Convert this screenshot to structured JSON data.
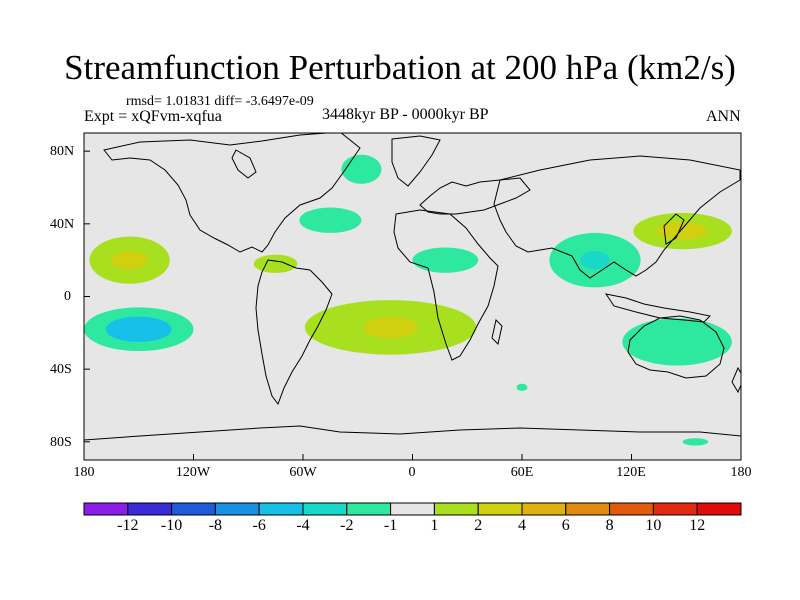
{
  "title": "Streamfunction Perturbation at 200 hPa (km2/s)",
  "stats_line": "rmsd= 1.01831 diff= -3.6497e-09",
  "expt_line": "Expt = xQFvm-xqfua",
  "period_line": "3448kyr BP - 0000kyr BP",
  "season": "ANN",
  "lat_labels": [
    "80N",
    "40N",
    "0",
    "40S",
    "80S"
  ],
  "lon_labels": [
    "180",
    "120W",
    "60W",
    "0",
    "60E",
    "120E",
    "180"
  ],
  "colorbar": {
    "labels": [
      "-12",
      "-10",
      "-8",
      "-6",
      "-4",
      "-2",
      "-1",
      "1",
      "2",
      "4",
      "6",
      "8",
      "10",
      "12"
    ],
    "colors": [
      "#8a1ee8",
      "#3a2ad8",
      "#1f5ad8",
      "#1a90e0",
      "#16c0e8",
      "#1ad8c8",
      "#2ee8a0",
      "#e6e6e6",
      "#a8e020",
      "#d0d010",
      "#e0b010",
      "#e08a10",
      "#e05a10",
      "#e02a10",
      "#e00a0a"
    ]
  },
  "map_data": {
    "background_color": "#e6e6e6",
    "lat_range": [
      -90,
      90
    ],
    "lon_range": [
      -180,
      180
    ],
    "anomaly_regions": [
      {
        "name": "north-pacific-positive",
        "lon": -155,
        "lat": 20,
        "rx": 22,
        "ry": 13,
        "color": "#a8e020",
        "core": {
          "rx": 10,
          "ry": 5,
          "color": "#d0d010"
        }
      },
      {
        "name": "south-pacific-negative",
        "lon": -150,
        "lat": -18,
        "rx": 30,
        "ry": 12,
        "color": "#2ee8a0",
        "core": {
          "rx": 18,
          "ry": 7,
          "color": "#16c0e8"
        }
      },
      {
        "name": "caribbean-positive",
        "lon": -75,
        "lat": 18,
        "rx": 12,
        "ry": 5,
        "color": "#a8e020"
      },
      {
        "name": "north-atlantic-negative",
        "lon": -45,
        "lat": 42,
        "rx": 17,
        "ry": 7,
        "color": "#2ee8a0"
      },
      {
        "name": "greenland-negative",
        "lon": -28,
        "lat": 70,
        "rx": 11,
        "ry": 8,
        "color": "#2ee8a0"
      },
      {
        "name": "sahara-negative",
        "lon": 18,
        "lat": 20,
        "rx": 18,
        "ry": 7,
        "color": "#2ee8a0"
      },
      {
        "name": "south-atlantic-positive",
        "lon": -12,
        "lat": -17,
        "rx": 47,
        "ry": 15,
        "color": "#a8e020",
        "core": {
          "rx": 15,
          "ry": 6,
          "color": "#d0d010"
        }
      },
      {
        "name": "asia-negative",
        "lon": 100,
        "lat": 20,
        "rx": 25,
        "ry": 15,
        "color": "#2ee8a0",
        "core": {
          "rx": 8,
          "ry": 5,
          "color": "#1ad8c8"
        }
      },
      {
        "name": "japan-positive",
        "lon": 148,
        "lat": 36,
        "rx": 27,
        "ry": 10,
        "color": "#a8e020",
        "core": {
          "rx": 14,
          "ry": 5,
          "color": "#d0d010"
        }
      },
      {
        "name": "australia-negative",
        "lon": 145,
        "lat": -25,
        "rx": 30,
        "ry": 13,
        "color": "#2ee8a0"
      },
      {
        "name": "south-indian-negative",
        "lon": 60,
        "lat": -50,
        "rx": 3,
        "ry": 2,
        "color": "#2ee8a0"
      },
      {
        "name": "southern-pacific-negative",
        "lon": 155,
        "lat": -80,
        "rx": 7,
        "ry": 2,
        "color": "#2ee8a0"
      }
    ]
  }
}
